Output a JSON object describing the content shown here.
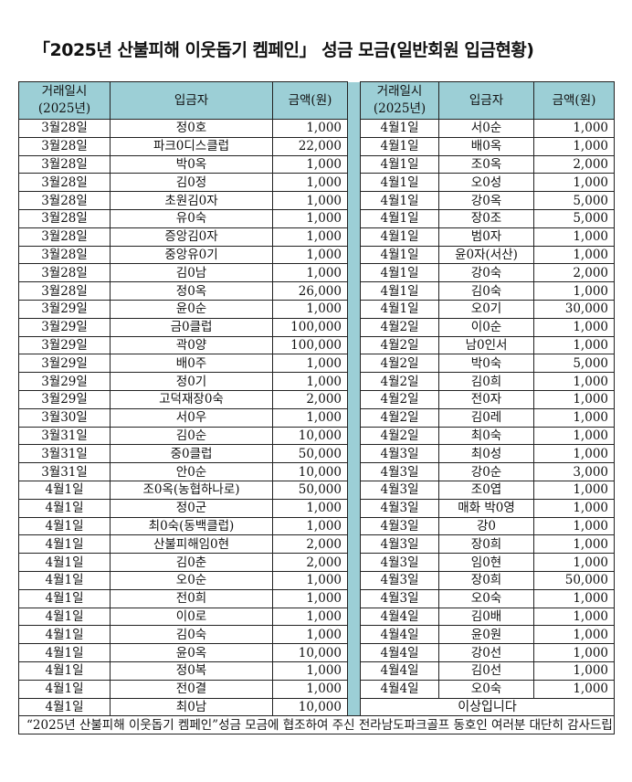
{
  "title": "「2025년 산불피해 이웃돕기 켐페인」 성금 모금(일반회원 입금현황)",
  "headers": {
    "date_line1": "거래일시",
    "date_line2": "(2025년)",
    "name": "입금자",
    "amount": "금액(원)"
  },
  "left": [
    {
      "date": "3월28일",
      "name": "정0호",
      "amount": "1,000"
    },
    {
      "date": "3월28일",
      "name": "파크0디스클럽",
      "amount": "22,000"
    },
    {
      "date": "3월28일",
      "name": "박0옥",
      "amount": "1,000"
    },
    {
      "date": "3월28일",
      "name": "김0정",
      "amount": "1,000"
    },
    {
      "date": "3월28일",
      "name": "초원김0자",
      "amount": "1,000"
    },
    {
      "date": "3월28일",
      "name": "유0숙",
      "amount": "1,000"
    },
    {
      "date": "3월28일",
      "name": "증앙김0자",
      "amount": "1,000"
    },
    {
      "date": "3월28일",
      "name": "중앙유0기",
      "amount": "1,000"
    },
    {
      "date": "3월28일",
      "name": "김0남",
      "amount": "1,000"
    },
    {
      "date": "3월28일",
      "name": "정0옥",
      "amount": "26,000"
    },
    {
      "date": "3월29일",
      "name": "윤0순",
      "amount": "1,000"
    },
    {
      "date": "3월29일",
      "name": "금0클럽",
      "amount": "100,000"
    },
    {
      "date": "3월29일",
      "name": "곽0양",
      "amount": "100,000"
    },
    {
      "date": "3월29일",
      "name": "배0주",
      "amount": "1,000"
    },
    {
      "date": "3월29일",
      "name": "정0기",
      "amount": "1,000"
    },
    {
      "date": "3월29일",
      "name": "고덕재장0숙",
      "amount": "2,000"
    },
    {
      "date": "3월30일",
      "name": "서0우",
      "amount": "1,000"
    },
    {
      "date": "3월31일",
      "name": "김0순",
      "amount": "10,000"
    },
    {
      "date": "3월31일",
      "name": "중0클럽",
      "amount": "50,000"
    },
    {
      "date": "3월31일",
      "name": "안0순",
      "amount": "10,000"
    },
    {
      "date": "4월1일",
      "name": "조0옥(농협하나로)",
      "amount": "50,000"
    },
    {
      "date": "4월1일",
      "name": "정0군",
      "amount": "1,000"
    },
    {
      "date": "4월1일",
      "name": "최0숙(동백클럽)",
      "amount": "1,000"
    },
    {
      "date": "4월1일",
      "name": "산불피해임0현",
      "amount": "2,000"
    },
    {
      "date": "4월1일",
      "name": "김0춘",
      "amount": "2,000"
    },
    {
      "date": "4월1일",
      "name": "오0순",
      "amount": "1,000"
    },
    {
      "date": "4월1일",
      "name": "전0희",
      "amount": "1,000"
    },
    {
      "date": "4월1일",
      "name": "이0로",
      "amount": "1,000"
    },
    {
      "date": "4월1일",
      "name": "김0숙",
      "amount": "1,000"
    },
    {
      "date": "4월1일",
      "name": "윤0옥",
      "amount": "10,000"
    },
    {
      "date": "4월1일",
      "name": "정0복",
      "amount": "1,000"
    },
    {
      "date": "4월1일",
      "name": "전0결",
      "amount": "1,000"
    },
    {
      "date": "4월1일",
      "name": "최0남",
      "amount": "10,000"
    }
  ],
  "right": [
    {
      "date": "4월1일",
      "name": "서0순",
      "amount": "1,000"
    },
    {
      "date": "4월1일",
      "name": "배0옥",
      "amount": "1,000"
    },
    {
      "date": "4월1일",
      "name": "조0옥",
      "amount": "2,000"
    },
    {
      "date": "4월1일",
      "name": "오0성",
      "amount": "1,000"
    },
    {
      "date": "4월1일",
      "name": "강0옥",
      "amount": "5,000"
    },
    {
      "date": "4월1일",
      "name": "장0조",
      "amount": "5,000"
    },
    {
      "date": "4월1일",
      "name": "범0자",
      "amount": "1,000"
    },
    {
      "date": "4월1일",
      "name": "윤0자(서산)",
      "amount": "1,000"
    },
    {
      "date": "4월1일",
      "name": "강0숙",
      "amount": "2,000"
    },
    {
      "date": "4월1일",
      "name": "김0숙",
      "amount": "1,000"
    },
    {
      "date": "4월1일",
      "name": "오0기",
      "amount": "30,000"
    },
    {
      "date": "4월2일",
      "name": "이0순",
      "amount": "1,000"
    },
    {
      "date": "4월2일",
      "name": "남0인서",
      "amount": "1,000"
    },
    {
      "date": "4월2일",
      "name": "박0숙",
      "amount": "5,000"
    },
    {
      "date": "4월2일",
      "name": "김0희",
      "amount": "1,000"
    },
    {
      "date": "4월2일",
      "name": "전0자",
      "amount": "1,000"
    },
    {
      "date": "4월2일",
      "name": "김0레",
      "amount": "1,000"
    },
    {
      "date": "4월2일",
      "name": "최0숙",
      "amount": "1,000"
    },
    {
      "date": "4월3일",
      "name": "최0성",
      "amount": "1,000"
    },
    {
      "date": "4월3일",
      "name": "강0순",
      "amount": "3,000"
    },
    {
      "date": "4월3일",
      "name": "조0엽",
      "amount": "1,000"
    },
    {
      "date": "4월3일",
      "name": "매화 박0영",
      "amount": "1,000"
    },
    {
      "date": "4월3일",
      "name": "강0",
      "amount": "1,000"
    },
    {
      "date": "4월3일",
      "name": "장0희",
      "amount": "1,000"
    },
    {
      "date": "4월3일",
      "name": "임0현",
      "amount": "1,000"
    },
    {
      "date": "4월3일",
      "name": "장0희",
      "amount": "50,000"
    },
    {
      "date": "4월3일",
      "name": "오0숙",
      "amount": "1,000"
    },
    {
      "date": "4월4일",
      "name": "김0배",
      "amount": "1,000"
    },
    {
      "date": "4월4일",
      "name": "윤0원",
      "amount": "1,000"
    },
    {
      "date": "4월4일",
      "name": "강0선",
      "amount": "1,000"
    },
    {
      "date": "4월4일",
      "name": "김0선",
      "amount": "1,000"
    },
    {
      "date": "4월4일",
      "name": "오0숙",
      "amount": "1,000"
    }
  ],
  "closing": "이상입니다",
  "footer": "“2025년 산불피해 이웃돕기 켐페인”성금 모금에 협조하여 주신 전라남도파크골프 동호인 여러분 대단히 감사드립니다.",
  "colors": {
    "header_bg": "#9ccfd6",
    "border": "#222222"
  }
}
